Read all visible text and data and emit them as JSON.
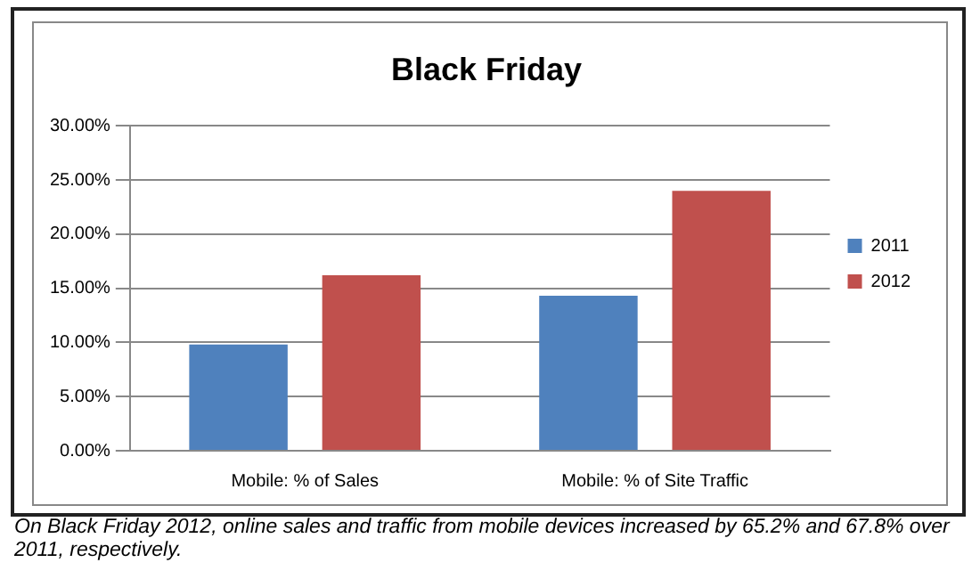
{
  "chart_data": {
    "type": "bar",
    "title": "Black Friday",
    "categories": [
      "Mobile: % of Sales",
      "Mobile: % of Site Traffic"
    ],
    "series": [
      {
        "name": "2011",
        "color": "#4f81bd",
        "values": [
          9.8,
          14.3
        ]
      },
      {
        "name": "2012",
        "color": "#c0504d",
        "values": [
          16.2,
          24.0
        ]
      }
    ],
    "ylim": [
      0,
      30
    ],
    "yticks": [
      {
        "value": 0,
        "label": "0.00%"
      },
      {
        "value": 5,
        "label": "5.00%"
      },
      {
        "value": 10,
        "label": "10.00%"
      },
      {
        "value": 15,
        "label": "15.00%"
      },
      {
        "value": 20,
        "label": "20.00%"
      },
      {
        "value": 25,
        "label": "25.00%"
      },
      {
        "value": 30,
        "label": "30.00%"
      }
    ],
    "grid": "y",
    "legend": "right",
    "annotations": [
      "On Black Friday 2012, online sales and traffic from mobile devices increased by 65.2% and 67.8% over 2011, respectively."
    ]
  }
}
